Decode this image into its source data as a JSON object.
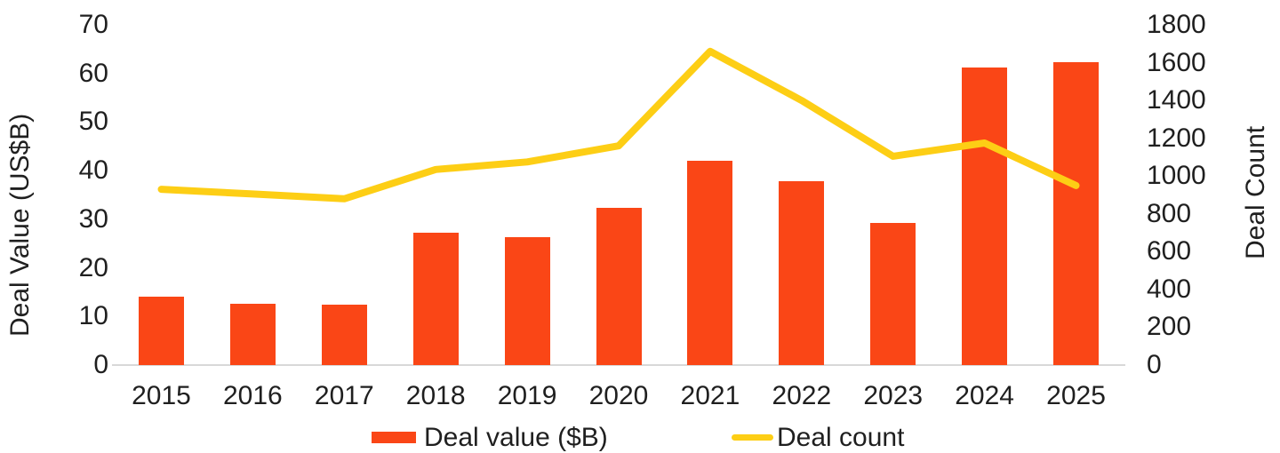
{
  "chart_data": {
    "type": "bar",
    "subtype": "combo-bar-line-dual-axis",
    "categories": [
      "2015",
      "2016",
      "2017",
      "2018",
      "2019",
      "2020",
      "2021",
      "2022",
      "2023",
      "2024",
      "2025"
    ],
    "series": [
      {
        "name": "Deal value ($B)",
        "type": "bar",
        "axis": "left",
        "color": "#FA4616",
        "values": [
          14.0,
          12.7,
          12.5,
          27.2,
          26.4,
          32.3,
          42.0,
          37.8,
          29.2,
          61.3,
          62.4
        ]
      },
      {
        "name": "Deal count",
        "type": "line",
        "axis": "right",
        "color": "#FDCE15",
        "values": [
          930,
          905,
          880,
          1035,
          1075,
          1160,
          1660,
          1400,
          1105,
          1175,
          950
        ]
      }
    ],
    "title": "",
    "xlabel": "",
    "ylabel_left": "Deal Value (US$B)",
    "ylabel_right": "Deal Count",
    "left_axis": {
      "min": 0,
      "max": 70,
      "step": 10,
      "ticks": [
        "0",
        "10",
        "20",
        "30",
        "40",
        "50",
        "60",
        "70"
      ]
    },
    "right_axis": {
      "min": 0,
      "max": 1800,
      "step": 200,
      "ticks": [
        "0",
        "200",
        "400",
        "600",
        "800",
        "1000",
        "1200",
        "1400",
        "1600",
        "1800"
      ]
    },
    "legend": {
      "position": "bottom",
      "entries": [
        "Deal value ($B)",
        "Deal count"
      ]
    },
    "grid": false,
    "text_color": "#1f1f1f",
    "axis_line_color": "#d8d8d8",
    "background": "#ffffff"
  }
}
